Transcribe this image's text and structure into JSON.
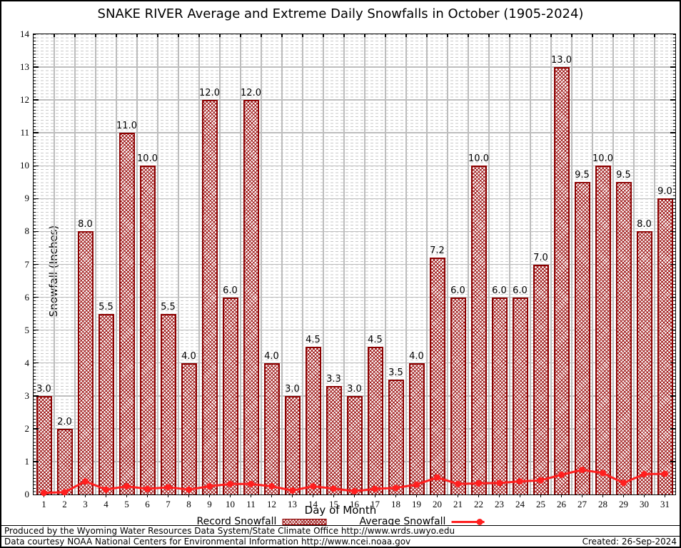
{
  "chart_data": {
    "type": "bar",
    "title": "SNAKE RIVER Average and Extreme Daily Snowfalls in October (1905-2024)",
    "xlabel": "Day of Month",
    "ylabel": "Snowfall (Inches)",
    "x": [
      1,
      2,
      3,
      4,
      5,
      6,
      7,
      8,
      9,
      10,
      11,
      12,
      13,
      14,
      15,
      16,
      17,
      18,
      19,
      20,
      21,
      22,
      23,
      24,
      25,
      26,
      27,
      28,
      29,
      30,
      31
    ],
    "ylim": [
      0,
      14
    ],
    "yticks": [
      0,
      1,
      2,
      3,
      4,
      5,
      6,
      7,
      8,
      9,
      10,
      11,
      12,
      13,
      14
    ],
    "grid": true,
    "legend_position": "bottom",
    "bar_value_labels": true,
    "series": [
      {
        "name": "Record Snowfall",
        "type": "bar",
        "values": [
          3.0,
          2.0,
          8.0,
          5.5,
          11.0,
          10.0,
          5.5,
          4.0,
          12.0,
          6.0,
          12.0,
          4.0,
          3.0,
          4.5,
          3.3,
          3.0,
          4.5,
          3.5,
          4.0,
          7.2,
          6.0,
          10.0,
          6.0,
          6.0,
          7.0,
          13.0,
          9.5,
          10.0,
          9.5,
          8.0,
          9.0
        ]
      },
      {
        "name": "Average Snowfall",
        "type": "line",
        "values": [
          0.05,
          0.07,
          0.4,
          0.15,
          0.25,
          0.17,
          0.22,
          0.15,
          0.25,
          0.32,
          0.32,
          0.25,
          0.12,
          0.25,
          0.18,
          0.1,
          0.17,
          0.2,
          0.3,
          0.52,
          0.32,
          0.34,
          0.35,
          0.4,
          0.43,
          0.6,
          0.75,
          0.65,
          0.35,
          0.62,
          0.63
        ]
      }
    ],
    "colors": {
      "bar_border": "#8b0000",
      "bar_hatch": "#9b1111",
      "avg_line": "#ff1f1f",
      "grid_major": "#bdbdbd",
      "grid_minor": "#c9c9c9",
      "axis": "#000000"
    }
  },
  "footer": {
    "line1": "Produced by the Wyoming Water Resources Data System/State Climate Office http://www.wrds.uwyo.edu",
    "line2": "Data courtesy NOAA National Centers for Environmental Information http://www.ncei.noaa.gov",
    "created": "Created: 26-Sep-2024"
  }
}
